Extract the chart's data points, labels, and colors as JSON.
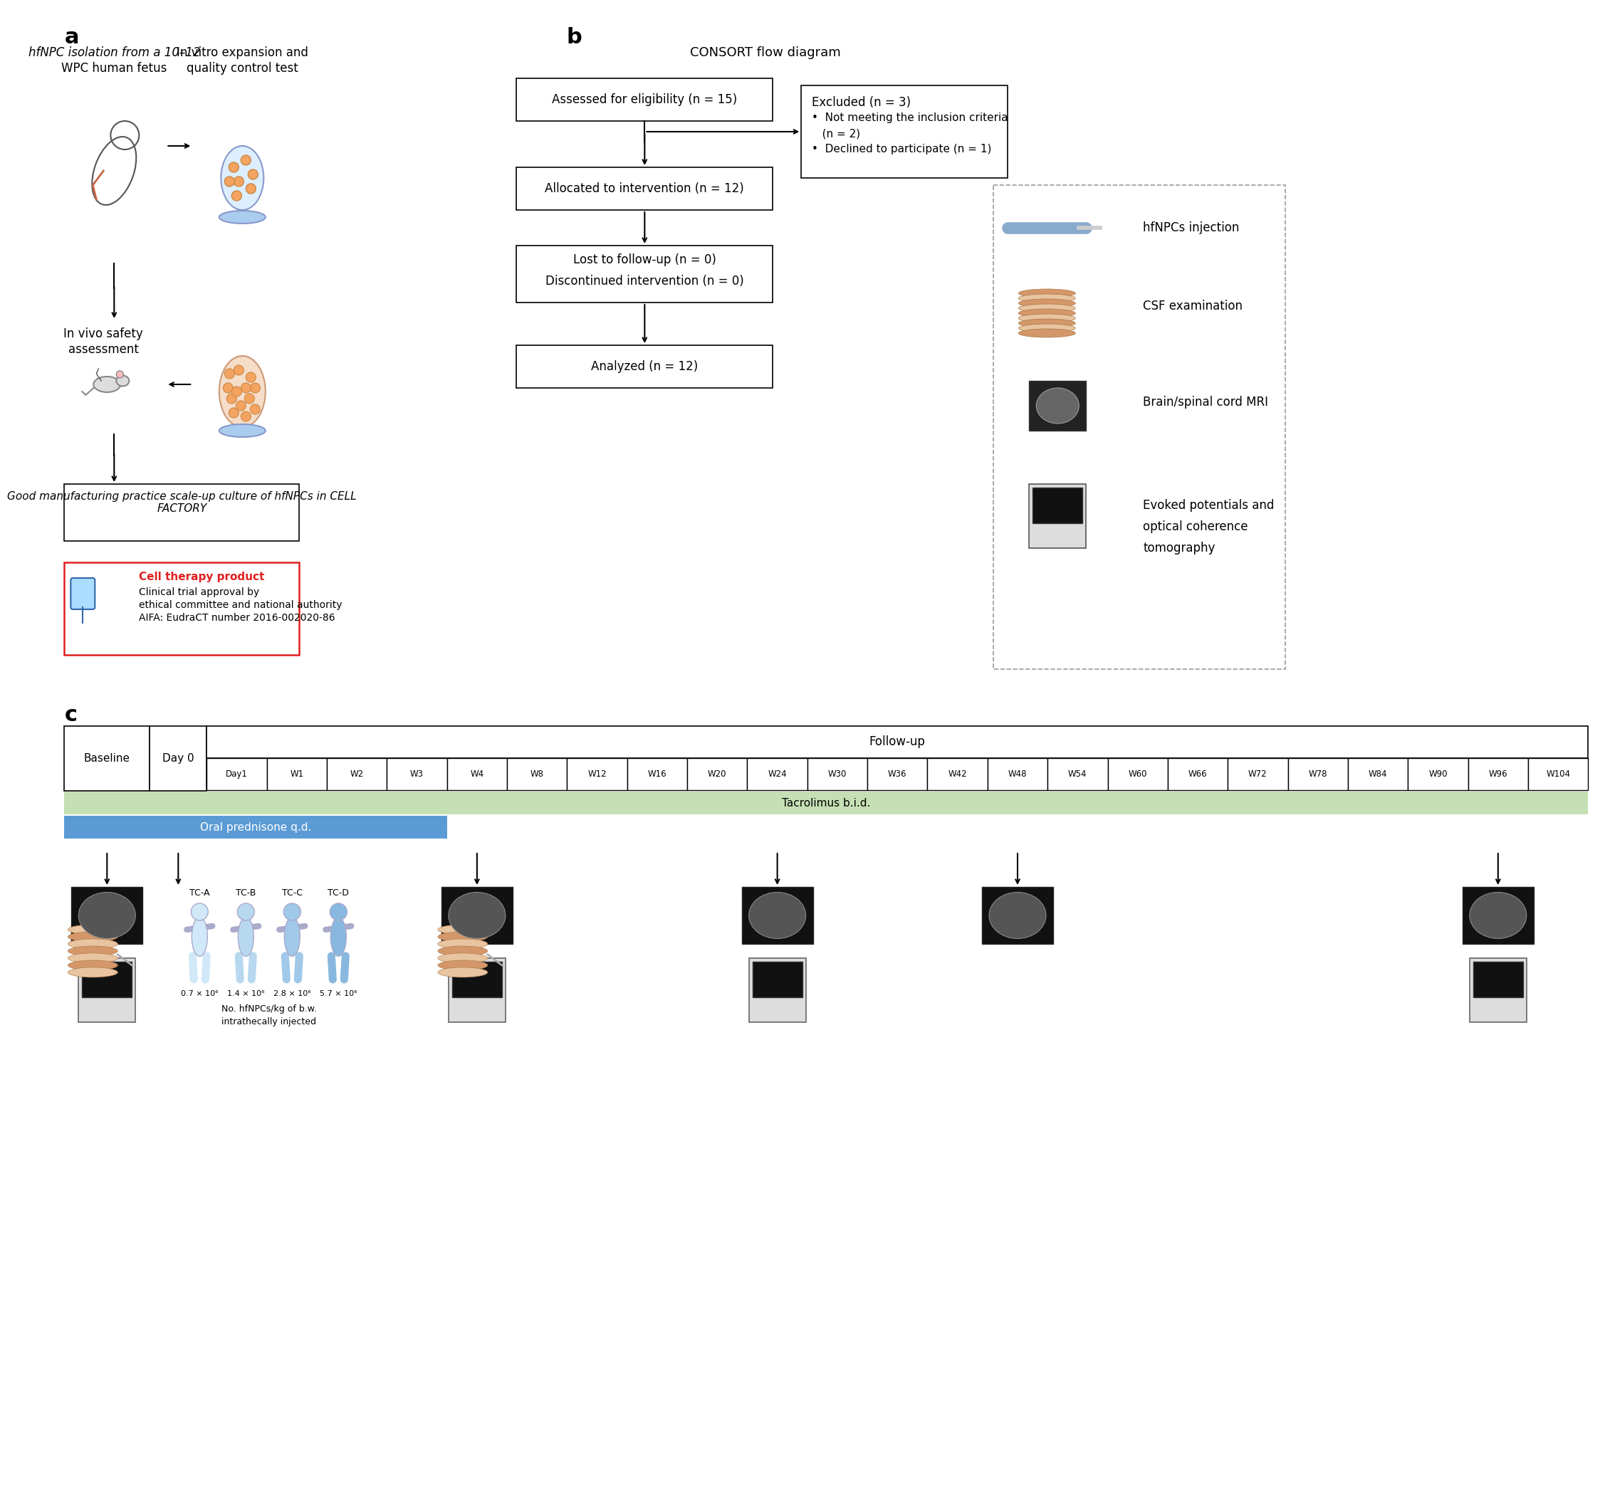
{
  "bg_color": "#ffffff",
  "panel_a_label": "a",
  "panel_b_label": "b",
  "panel_c_label": "c",
  "panel_a_texts": {
    "title1": "hfNPC isolation from a 10–12",
    "title1b": "WPC human fetus",
    "title2": "In vitro expansion and",
    "title2b": "quality control test",
    "title3": "In vivo safety",
    "title3b": "assessment",
    "title4": "Good manufacturing practice scale-up culture of hfNPCs in CELL\nFACTORY",
    "box_red_title": "Cell therapy product",
    "box_red_line1": "Clinical trial approval by",
    "box_red_line2": "ethical committee and national authority",
    "box_red_line3": "AIFA: EudraCT number 2016-002020-86"
  },
  "panel_b_texts": {
    "title": "CONSORT flow diagram",
    "box1": "Assessed for eligibility (n = 15)",
    "box2_title": "Excluded (n = 3)",
    "box2_line1": "•  Not meeting the inclusion criteria",
    "box2_line2": "   (n = 2)",
    "box2_line3": "•  Declined to participate (n = 1)",
    "box3": "Allocated to intervention (n = 12)",
    "box4_line1": "Lost to follow-up (n = 0)",
    "box4_line2": "Discontinued intervention (n = 0)",
    "box5": "Analyzed (n = 12)",
    "legend1": "hfNPCs injection",
    "legend2": "CSF examination",
    "legend3": "Brain/spinal cord MRI",
    "legend4": "Evoked potentials and",
    "legend4b": "optical coherence",
    "legend4c": "tomography"
  },
  "panel_c_texts": {
    "baseline": "Baseline",
    "day0": "Day 0",
    "followup": "Follow-up",
    "oral": "Oral prednisone q.d.",
    "tacrolimus": "Tacrolimus b.i.d.",
    "tc_a": "TC-A",
    "tc_b": "TC-B",
    "tc_c": "TC-C",
    "tc_d": "TC-D",
    "dose_a": "0.7 × 10⁶",
    "dose_b": "1.4 × 10⁶",
    "dose_c": "2.8 × 10⁶",
    "dose_d": "5.7 × 10⁶",
    "dose_note": "No. hfNPCs/kg of b.w.",
    "dose_note2": "intrathecally injected",
    "timeline": [
      "Day1",
      "W1",
      "W2",
      "W3",
      "W4",
      "W8",
      "W12",
      "W16",
      "W20",
      "W24",
      "W30",
      "W36",
      "W42",
      "W48",
      "W54",
      "W60",
      "W66",
      "W72",
      "W78",
      "W84",
      "W90",
      "W96",
      "W104"
    ]
  },
  "colors": {
    "arrow": "#000000",
    "box_border": "#000000",
    "red_box_border": "#e02020",
    "red_text": "#e02020",
    "green_band": "#8ab87a",
    "blue_band": "#5b9bd5",
    "tacrolimus_band": "#c5e0b4",
    "header_bg": "#e8e8e8",
    "dashed_box_border": "#999999"
  }
}
